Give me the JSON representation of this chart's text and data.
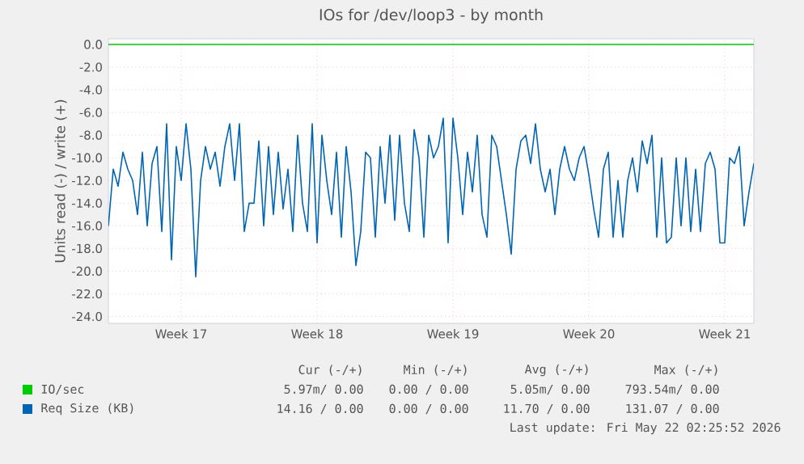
{
  "chart_data": {
    "type": "line",
    "title": "IOs for /dev/loop3 - by month",
    "ylabel": "Units read (-) / write (+)",
    "ylim": [
      -24.6,
      0.5
    ],
    "yticks": [
      {
        "value": -24,
        "label": "-24.0"
      },
      {
        "value": -22,
        "label": "-22.0"
      },
      {
        "value": -20,
        "label": "-20.0"
      },
      {
        "value": -18,
        "label": "-18.0"
      },
      {
        "value": -16,
        "label": "-16.0"
      },
      {
        "value": -14,
        "label": "-14.0"
      },
      {
        "value": -12,
        "label": "-12.0"
      },
      {
        "value": -10,
        "label": "-10.0"
      },
      {
        "value": -8,
        "label": "-8.0"
      },
      {
        "value": -6,
        "label": "-6.0"
      },
      {
        "value": -4,
        "label": "-4.0"
      },
      {
        "value": -2,
        "label": "-2.0"
      },
      {
        "value": 0,
        "label": "0.0"
      }
    ],
    "grid": true,
    "legend": "bottom",
    "categories": [
      null,
      null,
      null,
      null,
      null,
      null,
      null,
      null,
      null,
      null,
      null,
      null,
      null,
      null,
      null,
      "Week 17",
      null,
      null,
      null,
      null,
      null,
      null,
      null,
      null,
      null,
      null,
      null,
      null,
      null,
      null,
      null,
      null,
      null,
      null,
      null,
      null,
      null,
      null,
      null,
      null,
      null,
      null,
      null,
      "Week 18",
      null,
      null,
      null,
      null,
      null,
      null,
      null,
      null,
      null,
      null,
      null,
      null,
      null,
      null,
      null,
      null,
      null,
      null,
      null,
      null,
      null,
      null,
      null,
      null,
      null,
      null,
      null,
      "Week 19",
      null,
      null,
      null,
      null,
      null,
      null,
      null,
      null,
      null,
      null,
      null,
      null,
      null,
      null,
      null,
      null,
      null,
      null,
      null,
      null,
      null,
      null,
      null,
      null,
      null,
      null,
      null,
      "Week 20",
      null,
      null,
      null,
      null,
      null,
      null,
      null,
      null,
      null,
      null,
      null,
      null,
      null,
      null,
      null,
      null,
      null,
      null,
      null,
      null,
      null,
      null,
      null,
      null,
      null,
      null,
      null,
      "Week 21",
      null,
      null,
      null,
      null,
      null,
      null
    ],
    "series": [
      {
        "name": "IO/sec",
        "color": "#00cc00",
        "values": [
          0,
          0,
          0,
          0,
          0,
          0,
          0,
          0,
          0,
          0,
          0,
          0,
          0,
          0,
          0,
          0,
          0,
          0,
          0,
          0,
          0,
          0,
          0,
          0,
          0,
          0,
          0,
          0,
          0,
          0,
          0,
          0,
          0,
          0,
          0,
          0,
          0,
          0,
          0,
          0,
          0,
          0,
          0,
          0,
          0,
          0,
          0,
          0,
          0,
          0,
          0,
          0,
          0,
          0,
          0,
          0,
          0,
          0,
          0,
          0,
          0,
          0,
          0,
          0,
          0,
          0,
          0,
          0,
          0,
          0,
          0,
          0,
          0,
          0,
          0,
          0,
          0,
          0,
          0,
          0,
          0,
          0,
          0,
          0,
          0,
          0,
          0,
          0,
          0,
          0,
          0,
          0,
          0,
          0,
          0,
          0,
          0,
          0,
          0,
          0,
          0,
          0,
          0,
          0,
          0,
          0,
          0,
          0,
          0,
          0,
          0,
          0,
          0,
          0,
          0,
          0,
          0,
          0,
          0,
          0,
          0,
          0,
          0,
          0,
          0,
          0,
          0,
          0,
          0,
          0,
          0,
          0,
          0,
          0
        ]
      },
      {
        "name": "Req Size (KB)",
        "color": "#0066b3",
        "values": [
          -16,
          -11,
          -12.5,
          -9.5,
          -11,
          -12,
          -15,
          -9.5,
          -16,
          -10.5,
          -9,
          -16.5,
          -7,
          -19,
          -9,
          -12,
          -7,
          -11,
          -20.5,
          -12,
          -9,
          -11,
          -9.5,
          -12.5,
          -9,
          -7,
          -12,
          -7,
          -16.5,
          -14,
          -14,
          -8.5,
          -16,
          -9,
          -15,
          -9.5,
          -14.5,
          -11,
          -16.5,
          -8,
          -14,
          -16.5,
          -7,
          -17.5,
          -8,
          -12,
          -15,
          -9.5,
          -17,
          -9,
          -13,
          -19.5,
          -16.5,
          -9.5,
          -10,
          -17,
          -9,
          -14,
          -8,
          -15.5,
          -8,
          -14,
          -16.5,
          -7.5,
          -10,
          -17,
          -8,
          -10,
          -9,
          -6.5,
          -17.5,
          -6.5,
          -10,
          -15,
          -9.5,
          -13,
          -8,
          -15,
          -17,
          -8,
          -9,
          -12,
          -15,
          -18.5,
          -11,
          -8.5,
          -8,
          -10.5,
          -7,
          -11,
          -13,
          -11,
          -15,
          -11,
          -9,
          -11,
          -12,
          -10,
          -9,
          -11.5,
          -14.5,
          -17,
          -11,
          -9.5,
          -17,
          -12,
          -17,
          -12,
          -10,
          -13,
          -8.5,
          -10.5,
          -8,
          -17,
          -10,
          -17.5,
          -17,
          -10,
          -16,
          -10,
          -16.5,
          -11,
          -16.5,
          -10.5,
          -9.5,
          -11,
          -17.5,
          -17.5,
          -10,
          -10.5,
          -9,
          -16,
          -13,
          -10.5
        ]
      }
    ],
    "annotations": [
      "Cur (-/+)",
      "Min (-/+)",
      "Avg (-/+)",
      "Max (-/+)",
      "5.97m/ 0.00",
      "0.00 / 0.00",
      "5.05m/ 0.00",
      "793.54m/ 0.00",
      "14.16 / 0.00",
      "0.00 / 0.00",
      "11.70 / 0.00",
      "131.07 / 0.00",
      "Last update: Fri May 22 02:25:52 2026"
    ]
  }
}
